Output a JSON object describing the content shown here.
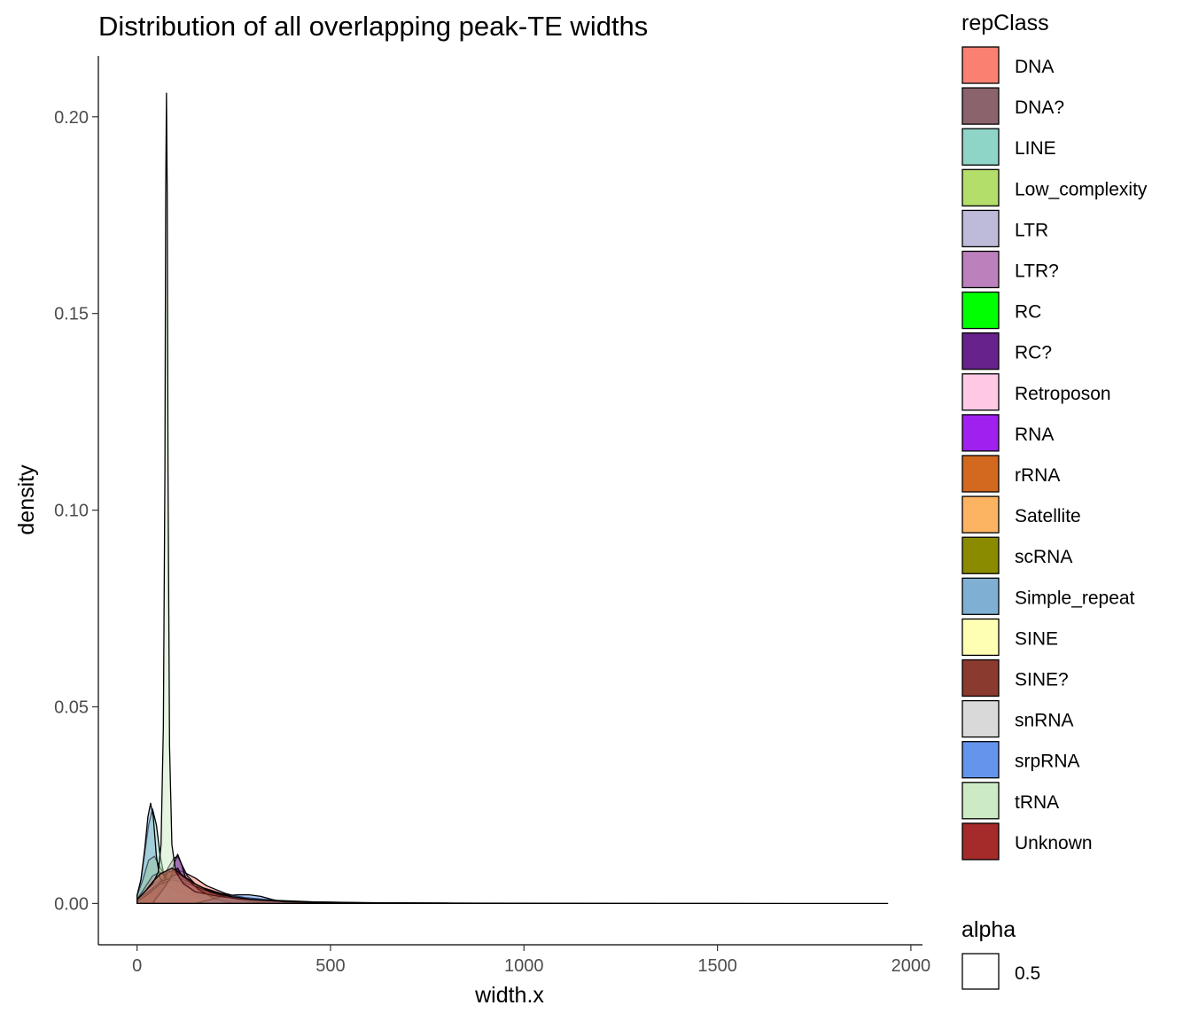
{
  "chart_data": {
    "type": "area",
    "title": "Distribution of all overlapping peak-TE widths",
    "xlabel": "width.x",
    "ylabel": "density",
    "xlim": [
      -100,
      2030
    ],
    "ylim": [
      -0.0105,
      0.2155
    ],
    "x_ticks": [
      0,
      500,
      1000,
      1500,
      2000
    ],
    "x_tick_labels": [
      "0",
      "500",
      "1000",
      "1500",
      "2000"
    ],
    "y_ticks": [
      0.0,
      0.05,
      0.1,
      0.15,
      0.2
    ],
    "y_tick_labels": [
      "0.00",
      "0.05",
      "0.10",
      "0.15",
      "0.20"
    ],
    "grid": false,
    "legend_placement": "right",
    "fill_opacity": 0.5,
    "legend": {
      "title": "repClass",
      "alpha_title": "alpha",
      "alpha_value": "0.5"
    },
    "series": [
      {
        "name": "DNA",
        "color": "#FA8072",
        "x": [
          0,
          15,
          30,
          45,
          60,
          75,
          90,
          105,
          120,
          150,
          180,
          230,
          280,
          350,
          450,
          600,
          800,
          1000
        ],
        "y": [
          0.0015,
          0.003,
          0.0055,
          0.0065,
          0.007,
          0.0075,
          0.008,
          0.0085,
          0.008,
          0.0065,
          0.0045,
          0.0025,
          0.0012,
          0.0006,
          0.0003,
          0.0001,
          0.0,
          0.0
        ]
      },
      {
        "name": "DNA?",
        "color": "#8B636C",
        "x": [
          0,
          20,
          40,
          60,
          80,
          100,
          130,
          160,
          200,
          260,
          330,
          420
        ],
        "y": [
          0.001,
          0.003,
          0.005,
          0.006,
          0.0065,
          0.006,
          0.005,
          0.0035,
          0.002,
          0.001,
          0.0004,
          0.0
        ]
      },
      {
        "name": "LINE",
        "color": "#8FD5C7",
        "x": [
          0,
          10,
          20,
          30,
          40,
          50,
          60,
          70,
          80,
          95,
          110,
          140,
          180,
          240,
          320,
          420,
          560,
          750,
          1000,
          1130
        ],
        "y": [
          0.002,
          0.006,
          0.013,
          0.02,
          0.024,
          0.02,
          0.012,
          0.007,
          0.005,
          0.0045,
          0.004,
          0.003,
          0.002,
          0.0012,
          0.0007,
          0.0004,
          0.0002,
          0.0001,
          3e-05,
          0.0
        ]
      },
      {
        "name": "Low_complexity",
        "color": "#B3DE69",
        "x": [
          0,
          15,
          30,
          45,
          60,
          80,
          100,
          130,
          170,
          220,
          300,
          400
        ],
        "y": [
          0.002,
          0.006,
          0.011,
          0.012,
          0.009,
          0.006,
          0.004,
          0.003,
          0.002,
          0.001,
          0.0004,
          0.0
        ]
      },
      {
        "name": "LTR",
        "color": "#BEBADA",
        "x": [
          0,
          20,
          40,
          60,
          80,
          100,
          130,
          170,
          220,
          280,
          360,
          460,
          600,
          800
        ],
        "y": [
          0.001,
          0.003,
          0.005,
          0.006,
          0.007,
          0.0065,
          0.0055,
          0.004,
          0.0025,
          0.0015,
          0.0008,
          0.0004,
          0.0001,
          0.0
        ]
      },
      {
        "name": "LTR?",
        "color": "#BC80BD",
        "x": [
          0,
          30,
          60,
          80,
          95,
          105,
          115,
          130,
          160,
          200,
          260,
          340
        ],
        "y": [
          0.0005,
          0.002,
          0.005,
          0.009,
          0.0115,
          0.012,
          0.01,
          0.007,
          0.004,
          0.002,
          0.0008,
          0.0
        ]
      },
      {
        "name": "RC",
        "color": "#00FF00",
        "x": [
          0,
          30,
          60,
          90,
          120,
          160,
          210,
          280,
          360
        ],
        "y": [
          0.0005,
          0.002,
          0.0035,
          0.004,
          0.0035,
          0.0025,
          0.0015,
          0.0006,
          0.0
        ]
      },
      {
        "name": "RC?",
        "color": "#68228B",
        "x": [
          60,
          80,
          95,
          105,
          115,
          130,
          150,
          180
        ],
        "y": [
          0.0,
          0.004,
          0.01,
          0.0125,
          0.01,
          0.005,
          0.0015,
          0.0
        ]
      },
      {
        "name": "Retroposon",
        "color": "#FFC9E4",
        "x": [
          0,
          40,
          80,
          120,
          170,
          230,
          300
        ],
        "y": [
          0.0005,
          0.002,
          0.0035,
          0.003,
          0.002,
          0.0008,
          0.0
        ]
      },
      {
        "name": "RNA",
        "color": "#A020F0",
        "x": [
          60,
          80,
          95,
          105,
          120,
          140,
          170
        ],
        "y": [
          0.0,
          0.003,
          0.008,
          0.009,
          0.006,
          0.002,
          0.0
        ]
      },
      {
        "name": "rRNA",
        "color": "#D2691E",
        "x": [
          0,
          30,
          60,
          90,
          120,
          160,
          210
        ],
        "y": [
          0.0005,
          0.0025,
          0.005,
          0.006,
          0.0045,
          0.002,
          0.0
        ]
      },
      {
        "name": "Satellite",
        "color": "#FDB462",
        "x": [
          0,
          20,
          40,
          60,
          80,
          110,
          150,
          200,
          260
        ],
        "y": [
          0.001,
          0.004,
          0.007,
          0.008,
          0.006,
          0.0035,
          0.0015,
          0.0005,
          0.0
        ]
      },
      {
        "name": "scRNA",
        "color": "#8B8B00",
        "x": [
          40,
          60,
          80,
          100,
          120,
          150,
          190
        ],
        "y": [
          0.0,
          0.004,
          0.008,
          0.0085,
          0.005,
          0.0015,
          0.0
        ]
      },
      {
        "name": "Simple_repeat",
        "color": "#7FB0D3",
        "x": [
          0,
          10,
          20,
          28,
          35,
          42,
          50,
          58,
          66,
          75,
          90,
          110,
          140,
          180,
          240,
          320,
          400
        ],
        "y": [
          0.002,
          0.006,
          0.014,
          0.022,
          0.0255,
          0.022,
          0.012,
          0.007,
          0.005,
          0.0045,
          0.004,
          0.003,
          0.002,
          0.0012,
          0.0006,
          0.0002,
          0.0
        ]
      },
      {
        "name": "SINE",
        "color": "#FFFFB3",
        "x": [
          0,
          30,
          60,
          90,
          120,
          150,
          180,
          220,
          280,
          360
        ],
        "y": [
          0.001,
          0.003,
          0.0055,
          0.0065,
          0.006,
          0.005,
          0.0035,
          0.002,
          0.0008,
          0.0
        ]
      },
      {
        "name": "SINE?",
        "color": "#8B3A2F",
        "x": [
          0,
          30,
          60,
          90,
          120,
          160,
          200,
          260,
          330
        ],
        "y": [
          0.0005,
          0.0025,
          0.005,
          0.006,
          0.0055,
          0.004,
          0.0025,
          0.001,
          0.0
        ]
      },
      {
        "name": "snRNA",
        "color": "#D9D9D9",
        "x": [
          40,
          70,
          90,
          110,
          130,
          160,
          200,
          250
        ],
        "y": [
          0.0,
          0.004,
          0.007,
          0.0075,
          0.006,
          0.0035,
          0.0012,
          0.0
        ]
      },
      {
        "name": "srpRNA",
        "color": "#6495ED",
        "x": [
          150,
          190,
          230,
          260,
          290,
          320,
          350,
          380,
          420
        ],
        "y": [
          0.0,
          0.001,
          0.002,
          0.0022,
          0.0022,
          0.0018,
          0.001,
          0.0004,
          0.0
        ]
      },
      {
        "name": "tRNA",
        "color": "#CCEBC5",
        "x": [
          0,
          20,
          40,
          55,
          62,
          68,
          72,
          74,
          76,
          78,
          80,
          84,
          90,
          100,
          120,
          150,
          200,
          260,
          340,
          450,
          600,
          800,
          1100,
          1500,
          1940
        ],
        "y": [
          0.001,
          0.003,
          0.005,
          0.008,
          0.015,
          0.045,
          0.11,
          0.18,
          0.206,
          0.18,
          0.11,
          0.04,
          0.015,
          0.008,
          0.005,
          0.003,
          0.002,
          0.0012,
          0.0007,
          0.0004,
          0.0002,
          0.0001,
          5e-05,
          2e-05,
          0.0
        ]
      },
      {
        "name": "Unknown",
        "color": "#A52A2A",
        "x": [
          0,
          20,
          40,
          60,
          80,
          90,
          100,
          120,
          150,
          190,
          240,
          300,
          380,
          480,
          620,
          800
        ],
        "y": [
          0.001,
          0.003,
          0.0055,
          0.0075,
          0.0085,
          0.009,
          0.0085,
          0.007,
          0.005,
          0.003,
          0.0018,
          0.001,
          0.0005,
          0.0002,
          0.0001,
          0.0
        ]
      }
    ]
  }
}
